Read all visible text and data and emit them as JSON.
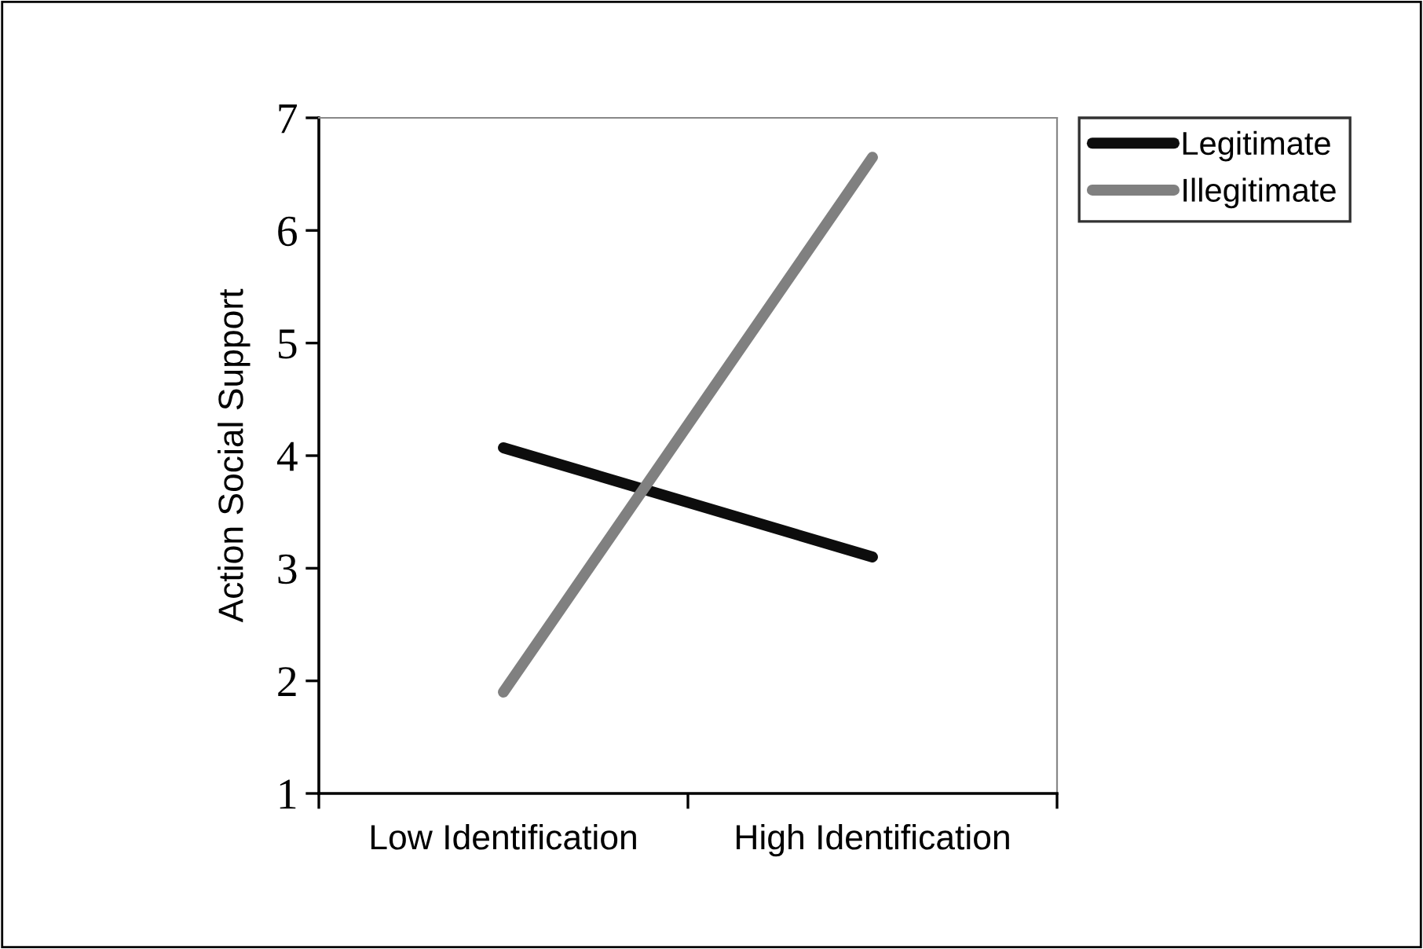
{
  "chart_data": {
    "type": "line",
    "ylabel": "Action Social Support",
    "categories": [
      "Low Identification",
      "High Identification"
    ],
    "series": [
      {
        "name": "Legitimate",
        "color": "#0d0d0d",
        "values": [
          4.07,
          3.1
        ]
      },
      {
        "name": "Illegitimate",
        "color": "#808080",
        "values": [
          1.9,
          6.65
        ]
      }
    ],
    "ylim": [
      1,
      7
    ],
    "yticks": [
      1,
      2,
      3,
      4,
      5,
      6,
      7
    ],
    "grid": false,
    "legend": "right",
    "marker": "none",
    "line_style": "solid"
  }
}
